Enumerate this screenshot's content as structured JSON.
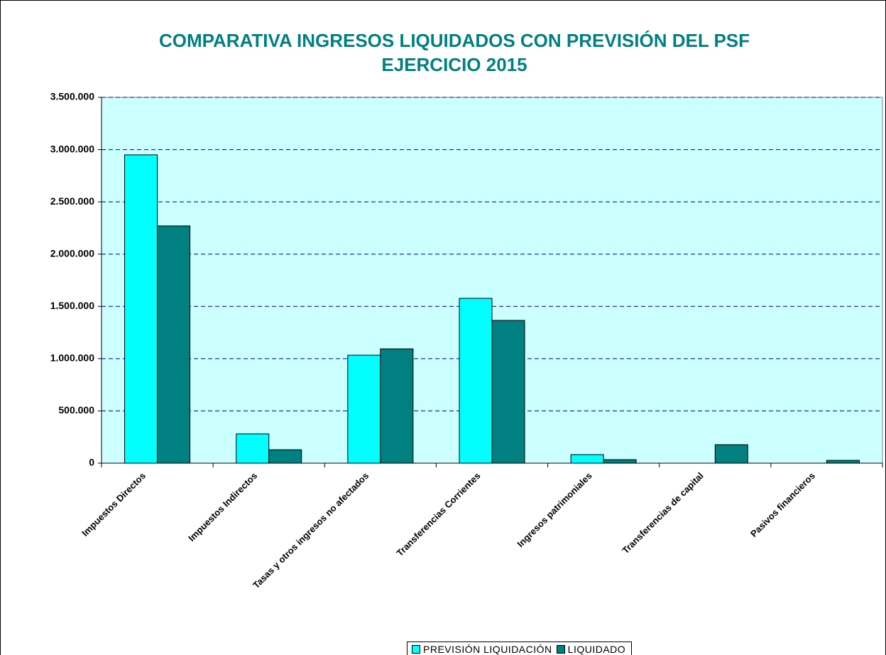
{
  "chart_data": {
    "type": "bar",
    "title": "COMPARATIVA INGRESOS LIQUIDADOS CON PREVISIÓN DEL PSF EJERCICIO 2015",
    "categories": [
      "Impuestos Directos",
      "Impuestos Indirectos",
      "Tasas y otros ingresos no afectados",
      "Transferencias Corrientes",
      "Ingresos patrimoniales",
      "Transferencias de capital",
      "Pasivos financieros"
    ],
    "series": [
      {
        "name": "PREVISIÓN LIQUIDACIÓN",
        "color": "#00ffff",
        "values": [
          2950000,
          280000,
          1033000,
          1577000,
          82000,
          0,
          0
        ]
      },
      {
        "name": "LIQUIDADO",
        "color": "#008080",
        "values": [
          2270000,
          129000,
          1094000,
          1366000,
          34000,
          177000,
          27000
        ]
      }
    ],
    "ylim": [
      0,
      3500000
    ],
    "yticks": [
      0,
      {
        "value": 500000,
        "label": "500.000"
      },
      {
        "value": 1000000,
        "label": "1.000.000"
      },
      {
        "value": 1500000,
        "label": "1.500.000"
      },
      {
        "value": 2000000,
        "label": "2.000.000"
      },
      {
        "value": 2500000,
        "label": "2.500.000"
      },
      {
        "value": 3000000,
        "label": "3.000.000"
      },
      {
        "value": 3500000,
        "label": "3.500.000"
      }
    ],
    "grid": true,
    "legend": "bottom",
    "plot_background": "#ccffff"
  }
}
